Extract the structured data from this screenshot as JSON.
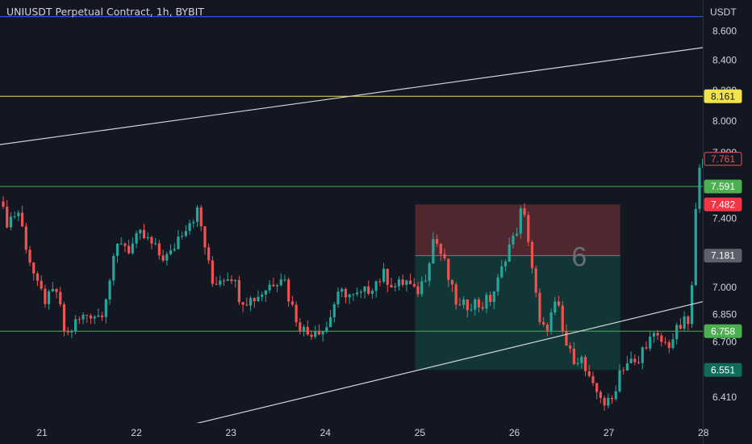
{
  "header": {
    "title": "UNIUSDT Perpetual Contract, 1h, BYBIT"
  },
  "axis": {
    "currency": "USDT"
  },
  "colors": {
    "background": "#131722",
    "up": "#26a69a",
    "down": "#ef5350",
    "axis_text": "#d1d4dc",
    "hline_blue": "#2962ff",
    "hline_yellow": "#f2e24b",
    "hline_green": "#4caf50",
    "trendline": "#d1d4dc",
    "risk_zone": "#5c2a31",
    "reward_zone": "#133a39"
  },
  "chart_data": {
    "type": "candlestick",
    "title": "UNIUSDT Perpetual Contract, 1h, BYBIT",
    "y_axis": {
      "scale": "log",
      "unit": "USDT",
      "ticks": [
        "8.600",
        "8.400",
        "8.200",
        "8.000",
        "7.800",
        "7.400",
        "7.000",
        "6.850",
        "6.700",
        "6.410"
      ]
    },
    "x_axis": {
      "ticks": [
        {
          "label": "21",
          "x": 21
        },
        {
          "label": "22",
          "x": 22
        },
        {
          "label": "23",
          "x": 23
        },
        {
          "label": "24",
          "x": 24
        },
        {
          "label": "25",
          "x": 25
        },
        {
          "label": "26",
          "x": 26
        },
        {
          "label": "27",
          "x": 27
        },
        {
          "label": "28",
          "x": 28
        }
      ]
    },
    "price_path": [
      {
        "x": 20.55,
        "p": 7.5
      },
      {
        "x": 20.62,
        "p": 7.38
      },
      {
        "x": 20.75,
        "p": 7.44
      },
      {
        "x": 20.85,
        "p": 7.2
      },
      {
        "x": 20.95,
        "p": 7.0
      },
      {
        "x": 21.05,
        "p": 6.92
      },
      {
        "x": 21.15,
        "p": 6.99
      },
      {
        "x": 21.25,
        "p": 6.72
      },
      {
        "x": 21.35,
        "p": 6.8
      },
      {
        "x": 21.5,
        "p": 6.86
      },
      {
        "x": 21.62,
        "p": 6.84
      },
      {
        "x": 21.72,
        "p": 7.05
      },
      {
        "x": 21.82,
        "p": 7.28
      },
      {
        "x": 21.92,
        "p": 7.22
      },
      {
        "x": 22.05,
        "p": 7.3
      },
      {
        "x": 22.15,
        "p": 7.25
      },
      {
        "x": 22.25,
        "p": 7.18
      },
      {
        "x": 22.35,
        "p": 7.17
      },
      {
        "x": 22.45,
        "p": 7.3
      },
      {
        "x": 22.55,
        "p": 7.38
      },
      {
        "x": 22.65,
        "p": 7.44
      },
      {
        "x": 22.72,
        "p": 7.25
      },
      {
        "x": 22.8,
        "p": 7.02
      },
      {
        "x": 22.9,
        "p": 7.06
      },
      {
        "x": 23.0,
        "p": 7.08
      },
      {
        "x": 23.1,
        "p": 6.94
      },
      {
        "x": 23.2,
        "p": 6.93
      },
      {
        "x": 23.3,
        "p": 6.96
      },
      {
        "x": 23.42,
        "p": 7.02
      },
      {
        "x": 23.55,
        "p": 7.08
      },
      {
        "x": 23.62,
        "p": 6.93
      },
      {
        "x": 23.7,
        "p": 6.82
      },
      {
        "x": 23.8,
        "p": 6.74
      },
      {
        "x": 23.9,
        "p": 6.78
      },
      {
        "x": 24.0,
        "p": 6.76
      },
      {
        "x": 24.1,
        "p": 6.92
      },
      {
        "x": 24.2,
        "p": 6.98
      },
      {
        "x": 24.3,
        "p": 6.94
      },
      {
        "x": 24.4,
        "p": 6.96
      },
      {
        "x": 24.5,
        "p": 7.02
      },
      {
        "x": 24.62,
        "p": 7.07
      },
      {
        "x": 24.75,
        "p": 7.0
      },
      {
        "x": 24.85,
        "p": 7.04
      },
      {
        "x": 24.95,
        "p": 6.96
      },
      {
        "x": 25.05,
        "p": 7.05
      },
      {
        "x": 25.15,
        "p": 7.3
      },
      {
        "x": 25.25,
        "p": 7.15
      },
      {
        "x": 25.35,
        "p": 6.96
      },
      {
        "x": 25.42,
        "p": 6.88
      },
      {
        "x": 25.55,
        "p": 6.92
      },
      {
        "x": 25.65,
        "p": 6.9
      },
      {
        "x": 25.75,
        "p": 6.94
      },
      {
        "x": 25.85,
        "p": 7.06
      },
      {
        "x": 25.92,
        "p": 7.22
      },
      {
        "x": 26.0,
        "p": 7.28
      },
      {
        "x": 26.08,
        "p": 7.46
      },
      {
        "x": 26.15,
        "p": 7.28
      },
      {
        "x": 26.2,
        "p": 7.06
      },
      {
        "x": 26.27,
        "p": 6.78
      },
      {
        "x": 26.32,
        "p": 6.76
      },
      {
        "x": 26.38,
        "p": 6.83
      },
      {
        "x": 26.45,
        "p": 6.92
      },
      {
        "x": 26.52,
        "p": 6.72
      },
      {
        "x": 26.6,
        "p": 6.62
      },
      {
        "x": 26.7,
        "p": 6.62
      },
      {
        "x": 26.78,
        "p": 6.5
      },
      {
        "x": 26.85,
        "p": 6.43
      },
      {
        "x": 26.9,
        "p": 6.44
      },
      {
        "x": 26.95,
        "p": 6.38
      },
      {
        "x": 27.02,
        "p": 6.37
      },
      {
        "x": 27.12,
        "p": 6.56
      },
      {
        "x": 27.22,
        "p": 6.6
      },
      {
        "x": 27.3,
        "p": 6.56
      },
      {
        "x": 27.38,
        "p": 6.7
      },
      {
        "x": 27.48,
        "p": 6.72
      },
      {
        "x": 27.56,
        "p": 6.7
      },
      {
        "x": 27.62,
        "p": 6.68
      },
      {
        "x": 27.7,
        "p": 6.74
      },
      {
        "x": 27.78,
        "p": 6.8
      },
      {
        "x": 27.84,
        "p": 6.8
      },
      {
        "x": 27.88,
        "p": 7.0
      },
      {
        "x": 27.91,
        "p": 7.3
      },
      {
        "x": 27.94,
        "p": 7.7
      },
      {
        "x": 27.97,
        "p": 7.78
      },
      {
        "x": 28.0,
        "p": 7.761
      }
    ],
    "horizontal_lines": [
      {
        "name": "blue",
        "price": 8.7,
        "label": ""
      },
      {
        "name": "yellow",
        "price": 8.161,
        "label": "8.161"
      },
      {
        "name": "green-upper",
        "price": 7.591,
        "label": "7.591"
      },
      {
        "name": "green-lower",
        "price": 6.758,
        "label": "6.758"
      }
    ],
    "trendlines": [
      {
        "name": "upper-channel",
        "x1": 20.55,
        "p1": 7.85,
        "x2": 28.15,
        "p2": 8.5
      },
      {
        "name": "lower-channel",
        "x1": 22.5,
        "p1": 6.26,
        "x2": 28.15,
        "p2": 6.94
      }
    ],
    "position": {
      "x_start": 24.95,
      "x_end": 27.12,
      "stop_price": 7.482,
      "entry_price": 7.181,
      "target_price": 6.551,
      "number": "6"
    },
    "price_labels": [
      {
        "name": "last-price",
        "text": "7.761",
        "price": 7.761,
        "style": "last"
      },
      {
        "name": "green-upper",
        "text": "7.591",
        "price": 7.591,
        "style": "green"
      },
      {
        "name": "stop",
        "text": "7.482",
        "price": 7.482,
        "style": "red"
      },
      {
        "name": "entry",
        "text": "7.181",
        "price": 7.181,
        "style": "gray"
      },
      {
        "name": "green-lower",
        "text": "6.758",
        "price": 6.758,
        "style": "green"
      },
      {
        "name": "target",
        "text": "6.551",
        "price": 6.551,
        "style": "darkgreen"
      },
      {
        "name": "yellow",
        "text": "8.161",
        "price": 8.161,
        "style": "yellow"
      }
    ]
  }
}
